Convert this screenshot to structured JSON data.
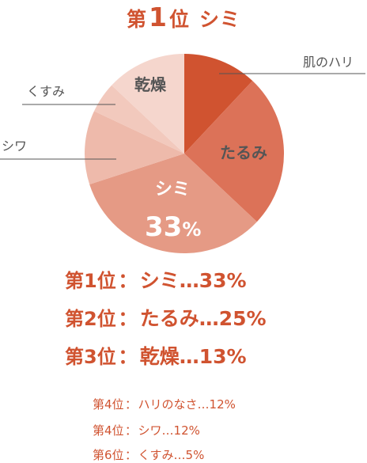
{
  "header": {
    "prefix": "第",
    "rank": "1",
    "suffix": "位",
    "name": "シミ"
  },
  "chart_data": {
    "type": "pie",
    "slices": [
      {
        "label": "肌のハリ",
        "value": 12,
        "color": "#d05330"
      },
      {
        "label": "たるみ",
        "value": 25,
        "color": "#dc7258"
      },
      {
        "label": "シミ",
        "value": 33,
        "color": "#e59a85"
      },
      {
        "label": "シワ",
        "value": 12,
        "color": "#eebaab"
      },
      {
        "label": "くすみ",
        "value": 5,
        "color": "#f2c9bd"
      },
      {
        "label": "乾燥",
        "value": 13,
        "color": "#f5d6cd"
      }
    ],
    "center_labels": {
      "tarumi": "たるみ",
      "shimi": "シミ",
      "shimi_value": "33",
      "shimi_unit": "%",
      "kanso": "乾燥"
    },
    "callouts": {
      "hari": "肌のハリ",
      "kusumi": "くすみ",
      "shiwa": "シワ"
    }
  },
  "ranking_main": [
    {
      "pos": "第1位",
      "colon": "：",
      "text": "シミ…33%"
    },
    {
      "pos": "第2位",
      "colon": "：",
      "text": "たるみ…25%"
    },
    {
      "pos": "第3位",
      "colon": "：",
      "text": "乾燥…13%"
    }
  ],
  "ranking_sub": [
    {
      "pos": "第4位",
      "colon": "：",
      "text": "ハリのなさ…12%"
    },
    {
      "pos": "第4位",
      "colon": "：",
      "text": "シワ…12%"
    },
    {
      "pos": "第6位",
      "colon": "：",
      "text": "くすみ…5%"
    }
  ],
  "colors": {
    "accent": "#d05330",
    "label_dark": "#555555",
    "line": "#555555"
  }
}
